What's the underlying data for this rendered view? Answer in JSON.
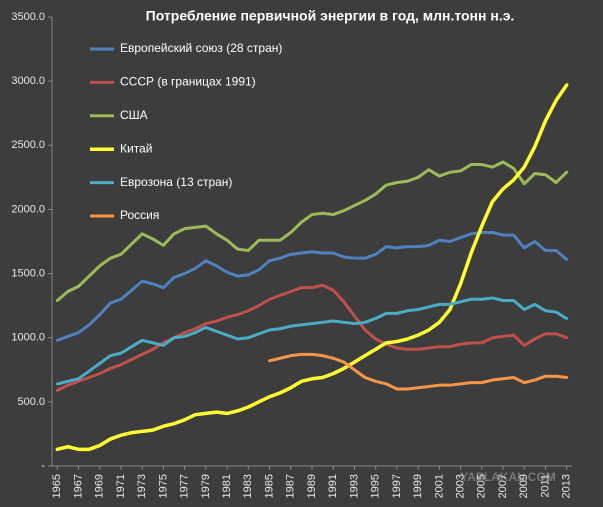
{
  "chart_data": {
    "type": "line",
    "title": "Потребление  первичной энергии в год, млн.тонн н.э.",
    "watermark": "YAPLAKAL.COM",
    "x": [
      1965,
      1966,
      1967,
      1968,
      1969,
      1970,
      1971,
      1972,
      1973,
      1974,
      1975,
      1976,
      1977,
      1978,
      1979,
      1980,
      1981,
      1982,
      1983,
      1984,
      1985,
      1986,
      1987,
      1988,
      1989,
      1990,
      1991,
      1992,
      1993,
      1994,
      1995,
      1996,
      1997,
      1998,
      1999,
      2000,
      2001,
      2002,
      2003,
      2004,
      2005,
      2006,
      2007,
      2008,
      2009,
      2010,
      2011,
      2012,
      2013
    ],
    "xlim": [
      1964.5,
      2013.5
    ],
    "xticks": [
      1965,
      1967,
      1969,
      1971,
      1973,
      1975,
      1977,
      1979,
      1981,
      1983,
      1985,
      1987,
      1989,
      1991,
      1993,
      1995,
      1997,
      1999,
      2001,
      2003,
      2005,
      2007,
      2009,
      2011,
      2013
    ],
    "ylim": [
      0,
      3500
    ],
    "yticks": [
      {
        "value": 0,
        "label": "-"
      },
      {
        "value": 500,
        "label": "500.0"
      },
      {
        "value": 1000,
        "label": "1000.0"
      },
      {
        "value": 1500,
        "label": "1500.0"
      },
      {
        "value": 2000,
        "label": "2000.0"
      },
      {
        "value": 2500,
        "label": "2500.0"
      },
      {
        "value": 3000,
        "label": "3000.0"
      },
      {
        "value": 3500,
        "label": "3500.0"
      }
    ],
    "grid": false,
    "legend": "top-left",
    "series": [
      {
        "name": "Европейский союз (28 стран)",
        "color": "#4f81bd",
        "values": [
          980,
          1010,
          1040,
          1100,
          1180,
          1270,
          1300,
          1370,
          1440,
          1420,
          1390,
          1470,
          1500,
          1540,
          1600,
          1560,
          1510,
          1480,
          1490,
          1530,
          1600,
          1620,
          1650,
          1660,
          1670,
          1660,
          1660,
          1630,
          1620,
          1620,
          1650,
          1710,
          1700,
          1710,
          1710,
          1720,
          1760,
          1750,
          1780,
          1810,
          1820,
          1820,
          1800,
          1800,
          1700,
          1750,
          1680,
          1680,
          1610
        ]
      },
      {
        "name": "СССР (в границах 1991)",
        "color": "#c0504d",
        "values": [
          590,
          630,
          660,
          690,
          720,
          760,
          790,
          830,
          870,
          910,
          960,
          1000,
          1040,
          1070,
          1110,
          1130,
          1160,
          1180,
          1210,
          1250,
          1300,
          1330,
          1360,
          1390,
          1390,
          1410,
          1370,
          1280,
          1170,
          1060,
          990,
          950,
          920,
          910,
          910,
          920,
          930,
          930,
          950,
          960,
          960,
          1000,
          1010,
          1020,
          940,
          990,
          1030,
          1030,
          1000
        ]
      },
      {
        "name": "США",
        "color": "#9bbb59",
        "values": [
          1290,
          1360,
          1400,
          1480,
          1560,
          1620,
          1650,
          1730,
          1810,
          1770,
          1720,
          1810,
          1850,
          1860,
          1870,
          1810,
          1760,
          1690,
          1680,
          1760,
          1760,
          1760,
          1820,
          1900,
          1960,
          1970,
          1960,
          1990,
          2030,
          2070,
          2120,
          2190,
          2210,
          2220,
          2250,
          2310,
          2260,
          2290,
          2300,
          2350,
          2350,
          2330,
          2370,
          2320,
          2200,
          2280,
          2270,
          2210,
          2290
        ]
      },
      {
        "name": "Китай",
        "color": "#ffff33",
        "values": [
          130,
          150,
          130,
          130,
          160,
          210,
          240,
          260,
          270,
          280,
          310,
          330,
          360,
          400,
          410,
          420,
          410,
          430,
          460,
          500,
          540,
          570,
          610,
          660,
          680,
          690,
          720,
          760,
          810,
          860,
          910,
          960,
          970,
          990,
          1020,
          1060,
          1120,
          1220,
          1420,
          1660,
          1870,
          2060,
          2160,
          2230,
          2330,
          2490,
          2690,
          2850,
          2970
        ]
      },
      {
        "name": "Еврозона (13 стран)",
        "color": "#4bacc6",
        "values": [
          640,
          660,
          680,
          740,
          800,
          860,
          880,
          930,
          980,
          960,
          940,
          1000,
          1010,
          1040,
          1080,
          1050,
          1020,
          990,
          1000,
          1030,
          1060,
          1070,
          1090,
          1100,
          1110,
          1120,
          1130,
          1120,
          1110,
          1120,
          1150,
          1190,
          1190,
          1210,
          1220,
          1240,
          1260,
          1260,
          1280,
          1300,
          1300,
          1310,
          1290,
          1290,
          1220,
          1260,
          1210,
          1200,
          1150
        ]
      },
      {
        "name": "Россия",
        "color": "#f79646",
        "values": [
          null,
          null,
          null,
          null,
          null,
          null,
          null,
          null,
          null,
          null,
          null,
          null,
          null,
          null,
          null,
          null,
          null,
          null,
          null,
          null,
          820,
          840,
          860,
          870,
          870,
          860,
          840,
          810,
          750,
          690,
          660,
          640,
          600,
          600,
          610,
          620,
          630,
          630,
          640,
          650,
          650,
          670,
          680,
          690,
          650,
          670,
          700,
          700,
          690
        ]
      }
    ]
  }
}
